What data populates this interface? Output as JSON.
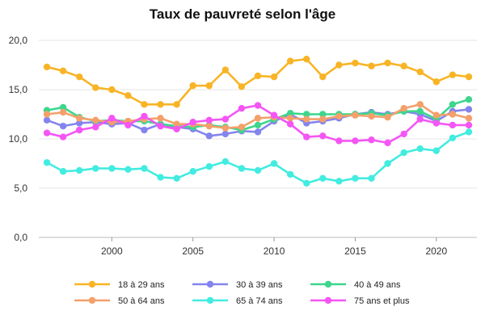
{
  "chart_data": {
    "type": "line",
    "title": "Taux de pauvreté selon l'âge",
    "xlabel": "",
    "ylabel": "",
    "x": [
      1996,
      1997,
      1998,
      1999,
      2000,
      2001,
      2002,
      2003,
      2004,
      2005,
      2006,
      2007,
      2008,
      2009,
      2010,
      2011,
      2012,
      2013,
      2014,
      2015,
      2016,
      2017,
      2018,
      2019,
      2020,
      2021,
      2022
    ],
    "xlim": [
      1995.5,
      2022.5
    ],
    "ylim": [
      0,
      20
    ],
    "x_ticks": [
      2000,
      2005,
      2010,
      2015,
      2020
    ],
    "x_tick_labels": [
      "2000",
      "2005",
      "2010",
      "2015",
      "2020"
    ],
    "y_ticks": [
      0,
      5,
      10,
      15,
      20
    ],
    "y_tick_labels": [
      "0,0",
      "5,0",
      "10,0",
      "15,0",
      "20,0"
    ],
    "grid": "horizontal",
    "legend_position": "bottom",
    "series": [
      {
        "name": "18 à 29 ans",
        "color": "#f8b425",
        "values": [
          17.3,
          16.9,
          16.3,
          15.2,
          15.0,
          14.4,
          13.5,
          13.5,
          13.5,
          15.4,
          15.4,
          17.0,
          15.3,
          16.4,
          16.3,
          17.9,
          18.1,
          16.3,
          17.5,
          17.7,
          17.4,
          17.7,
          17.4,
          16.8,
          15.8,
          16.5,
          16.3
        ]
      },
      {
        "name": "30 à 39 ans",
        "color": "#8484ee",
        "values": [
          11.9,
          11.3,
          11.6,
          11.7,
          11.5,
          11.6,
          10.9,
          11.5,
          11.2,
          11.0,
          10.3,
          10.5,
          10.8,
          10.7,
          11.8,
          12.5,
          11.6,
          11.8,
          12.1,
          12.5,
          12.7,
          12.5,
          12.8,
          12.5,
          11.8,
          12.8,
          13.0
        ]
      },
      {
        "name": "40 à 49 ans",
        "color": "#3dd68c",
        "values": [
          12.9,
          13.2,
          12.2,
          11.8,
          11.9,
          11.8,
          11.8,
          11.5,
          11.3,
          11.2,
          11.4,
          11.2,
          10.9,
          11.4,
          12.0,
          12.6,
          12.5,
          12.5,
          12.5,
          12.5,
          12.6,
          12.4,
          12.8,
          12.8,
          12.0,
          13.5,
          14.0
        ]
      },
      {
        "name": "50 à 64 ans",
        "color": "#f4a06b",
        "values": [
          12.5,
          12.7,
          12.1,
          11.9,
          11.7,
          11.8,
          12.0,
          12.1,
          11.5,
          11.5,
          11.3,
          11.1,
          11.2,
          12.1,
          12.2,
          12.1,
          12.0,
          12.0,
          12.3,
          12.4,
          12.3,
          12.2,
          13.1,
          13.5,
          12.4,
          12.5,
          12.1
        ]
      },
      {
        "name": "65 à 74 ans",
        "color": "#42ece0",
        "values": [
          7.6,
          6.7,
          6.8,
          7.0,
          7.0,
          6.9,
          7.0,
          6.1,
          6.0,
          6.7,
          7.2,
          7.7,
          7.0,
          6.8,
          7.5,
          6.4,
          5.5,
          6.0,
          5.7,
          6.0,
          6.0,
          7.5,
          8.6,
          9.0,
          8.8,
          10.1,
          10.7
        ]
      },
      {
        "name": "75 ans et plus",
        "color": "#f455f4",
        "values": [
          10.6,
          10.2,
          10.9,
          11.2,
          12.1,
          11.4,
          12.3,
          11.3,
          11.0,
          11.7,
          11.9,
          12.0,
          13.1,
          13.4,
          12.4,
          11.5,
          10.2,
          10.3,
          9.8,
          9.8,
          9.9,
          9.6,
          10.5,
          12.0,
          11.6,
          11.4,
          11.4
        ]
      }
    ]
  }
}
